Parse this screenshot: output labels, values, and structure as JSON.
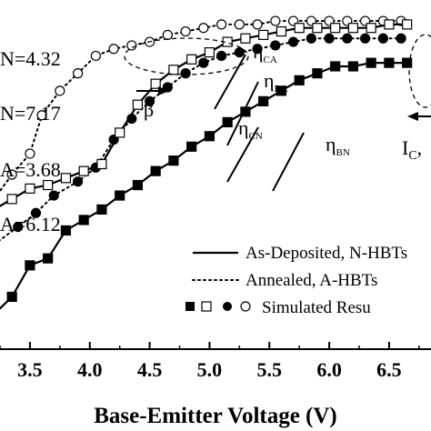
{
  "chart_data": {
    "type": "scatter",
    "xlabel": "Base-Emitter Voltage (V)",
    "x_ticks": [
      "3.5",
      "4.0",
      "4.5",
      "5.0",
      "5.5",
      "6.0",
      "6.5"
    ],
    "xlim": [
      3.25,
      6.85
    ],
    "ylim": [
      0,
      100
    ],
    "ylog": false,
    "legend": {
      "placement": "bottom-right",
      "items": [
        {
          "style": "solid",
          "label": "As-Deposited, N-HBTs"
        },
        {
          "style": "dotted",
          "label": "Annealed, A-HBTs"
        },
        {
          "style": "markers",
          "label": "Simulated Resu"
        }
      ]
    },
    "left_annotations": [
      "N=4.32",
      "N=7.17",
      "A=3.68",
      "A=6.12"
    ],
    "curve_labels": [
      {
        "text": "η",
        "sub": "CA"
      },
      {
        "text": "η",
        "sub": "BA"
      },
      {
        "text": "η",
        "sub": "CN"
      },
      {
        "text": "η",
        "sub": "BN"
      }
    ],
    "group_labels": {
      "beta": "β",
      "ic": "I",
      "ic_sub": "C",
      "ic_suffix": ","
    },
    "series": [
      {
        "marker": "open-circle",
        "line": "dotted",
        "x": [
          3.2,
          3.35,
          3.5,
          3.6,
          3.75,
          3.9,
          4.05,
          4.2,
          4.35,
          4.5,
          4.65,
          4.8,
          4.95,
          5.1,
          5.25,
          5.4,
          5.55,
          5.7,
          5.85,
          6.0,
          6.15,
          6.3,
          6.45,
          6.6
        ],
        "y": [
          43,
          50,
          56,
          67,
          74,
          79,
          84,
          86,
          87,
          88,
          90,
          91,
          92,
          93,
          93,
          93,
          94,
          94,
          94,
          94,
          94,
          94,
          94,
          94
        ]
      },
      {
        "marker": "filled-circle",
        "line": "dotted",
        "x": [
          3.2,
          3.4,
          3.55,
          3.7,
          3.9,
          4.05,
          4.2,
          4.35,
          4.5,
          4.65,
          4.8,
          4.95,
          5.1,
          5.25,
          5.4,
          5.55,
          5.7,
          5.85,
          6.0,
          6.15,
          6.3,
          6.45,
          6.6
        ],
        "y": [
          30,
          35,
          39,
          44,
          48,
          52,
          60,
          66,
          71,
          75,
          79,
          82,
          84,
          85,
          86,
          87,
          88,
          89,
          89,
          89,
          89,
          89,
          89
        ]
      },
      {
        "marker": "open-square",
        "line": "solid",
        "x": [
          3.2,
          3.35,
          3.5,
          3.65,
          3.8,
          3.95,
          4.1,
          4.25,
          4.4,
          4.55,
          4.7,
          4.85,
          5.0,
          5.15,
          5.3,
          5.45,
          5.6,
          5.75,
          5.9,
          6.05,
          6.2,
          6.35,
          6.5,
          6.65
        ],
        "y": [
          40,
          43,
          46,
          47,
          49,
          51,
          53,
          62,
          70,
          76,
          80,
          83,
          85,
          88,
          89,
          90,
          91,
          92,
          92,
          92,
          92,
          92,
          93,
          93
        ]
      },
      {
        "marker": "filled-square",
        "line": "solid",
        "x": [
          3.2,
          3.35,
          3.5,
          3.65,
          3.8,
          3.95,
          4.1,
          4.25,
          4.4,
          4.55,
          4.7,
          4.85,
          5.0,
          5.15,
          5.3,
          5.45,
          5.6,
          5.75,
          5.9,
          6.05,
          6.2,
          6.35,
          6.5,
          6.65
        ],
        "y": [
          10,
          15,
          24,
          26,
          34,
          37,
          40,
          44,
          47,
          51,
          54,
          58,
          61,
          65,
          68,
          71,
          74,
          77,
          79,
          81,
          81,
          82,
          82,
          82
        ]
      }
    ]
  }
}
